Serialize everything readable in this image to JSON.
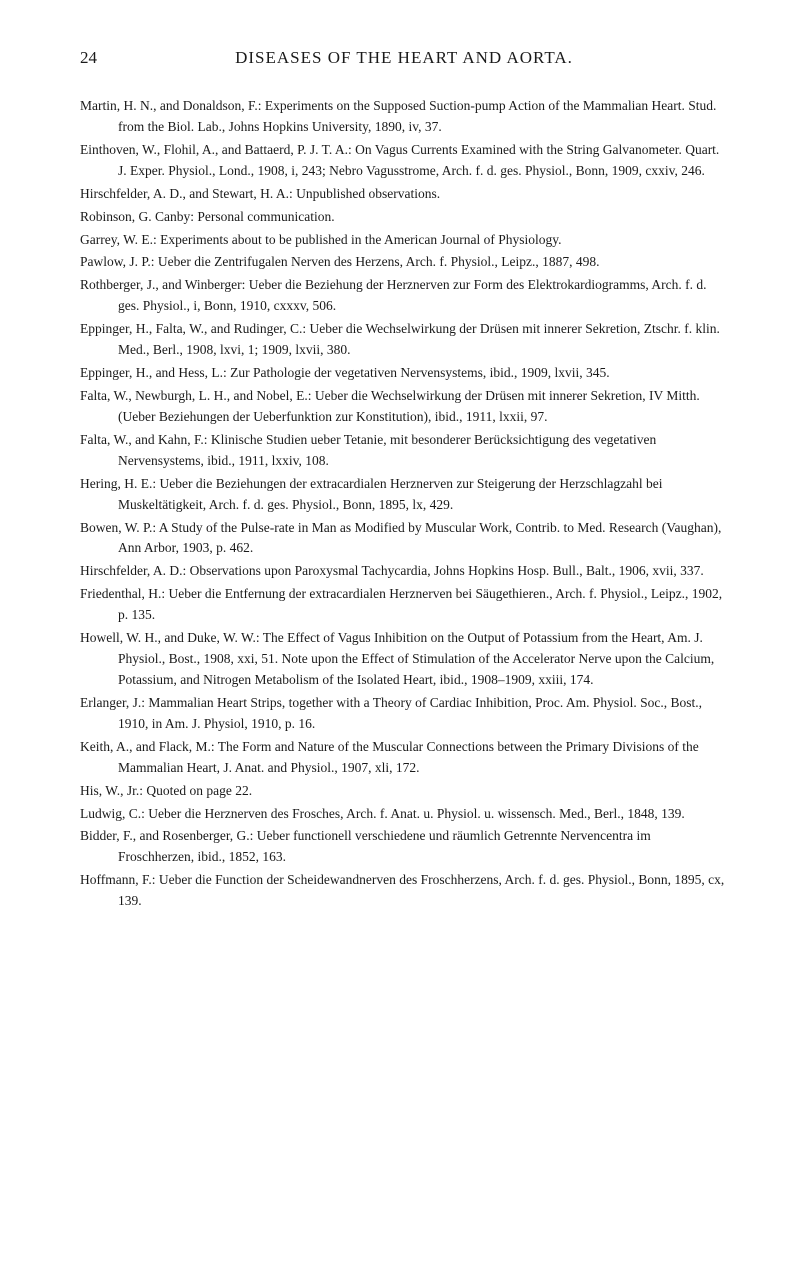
{
  "header": {
    "page_number": "24",
    "title": "DISEASES OF THE HEART AND AORTA."
  },
  "references": [
    "Martin, H. N., and Donaldson, F.: Experiments on the Supposed Suction-pump Action of the Mammalian Heart. Stud. from the Biol. Lab., Johns Hopkins University, 1890, iv, 37.",
    "Einthoven, W., Flohil, A., and Battaerd, P. J. T. A.: On Vagus Currents Examined with the String Galvanometer. Quart. J. Exper. Physiol., Lond., 1908, i, 243; Nebro Vagusstrome, Arch. f. d. ges. Physiol., Bonn, 1909, cxxiv, 246.",
    "Hirschfelder, A. D., and Stewart, H. A.: Unpublished observations.",
    "Robinson, G. Canby: Personal communication.",
    "Garrey, W. E.: Experiments about to be published in the American Journal of Physiology.",
    "Pawlow, J. P.: Ueber die Zentrifugalen Nerven des Herzens, Arch. f. Physiol., Leipz., 1887, 498.",
    "Rothberger, J., and Winberger: Ueber die Beziehung der Herznerven zur Form des Elektrokardiogramms, Arch. f. d. ges. Physiol., i, Bonn, 1910, cxxxv, 506.",
    "Eppinger, H., Falta, W., and Rudinger, C.: Ueber die Wechselwirkung der Drüsen mit innerer Sekretion, Ztschr. f. klin. Med., Berl., 1908, lxvi, 1; 1909, lxvii, 380.",
    "Eppinger, H., and Hess, L.: Zur Pathologie der vegetativen Nervensystems, ibid., 1909, lxvii, 345.",
    "Falta, W., Newburgh, L. H., and Nobel, E.: Ueber die Wechselwirkung der Drüsen mit innerer Sekretion, IV Mitth. (Ueber Beziehungen der Ueberfunktion zur Konstitution), ibid., 1911, lxxii, 97.",
    "Falta, W., and Kahn, F.: Klinische Studien ueber Tetanie, mit besonderer Berücksichtigung des vegetativen Nervensystems, ibid., 1911, lxxiv, 108.",
    "Hering, H. E.: Ueber die Beziehungen der extracardialen Herznerven zur Steigerung der Herzschlagzahl bei Muskeltätigkeit, Arch. f. d. ges. Physiol., Bonn, 1895, lx, 429.",
    "Bowen, W. P.: A Study of the Pulse-rate in Man as Modified by Muscular Work, Contrib. to Med. Research (Vaughan), Ann Arbor, 1903, p. 462.",
    "Hirschfelder, A. D.: Observations upon Paroxysmal Tachycardia, Johns Hopkins Hosp. Bull., Balt., 1906, xvii, 337.",
    "Friedenthal, H.: Ueber die Entfernung der extracardialen Herznerven bei Säugethieren., Arch. f. Physiol., Leipz., 1902, p. 135.",
    "Howell, W. H., and Duke, W. W.: The Effect of Vagus Inhibition on the Output of Potassium from the Heart, Am. J. Physiol., Bost., 1908, xxi, 51. Note upon the Effect of Stimulation of the Accelerator Nerve upon the Calcium, Potassium, and Nitrogen Metabolism of the Isolated Heart, ibid., 1908–1909, xxiii, 174.",
    "Erlanger, J.: Mammalian Heart Strips, together with a Theory of Cardiac Inhibition, Proc. Am. Physiol. Soc., Bost., 1910, in Am. J. Physiol, 1910, p. 16.",
    "Keith, A., and Flack, M.: The Form and Nature of the Muscular Connections between the Primary Divisions of the Mammalian Heart, J. Anat. and Physiol., 1907, xli, 172.",
    "His, W., Jr.: Quoted on page 22.",
    "Ludwig, C.: Ueber die Herznerven des Frosches, Arch. f. Anat. u. Physiol. u. wissensch. Med., Berl., 1848, 139.",
    "Bidder, F., and Rosenberger, G.: Ueber functionell verschiedene und räumlich Getrennte Nervencentra im Froschherzen, ibid., 1852, 163.",
    "Hoffmann, F.: Ueber die Function der Scheidewandnerven des Froschherzens, Arch. f. d. ges. Physiol., Bonn, 1895, cx, 139."
  ]
}
